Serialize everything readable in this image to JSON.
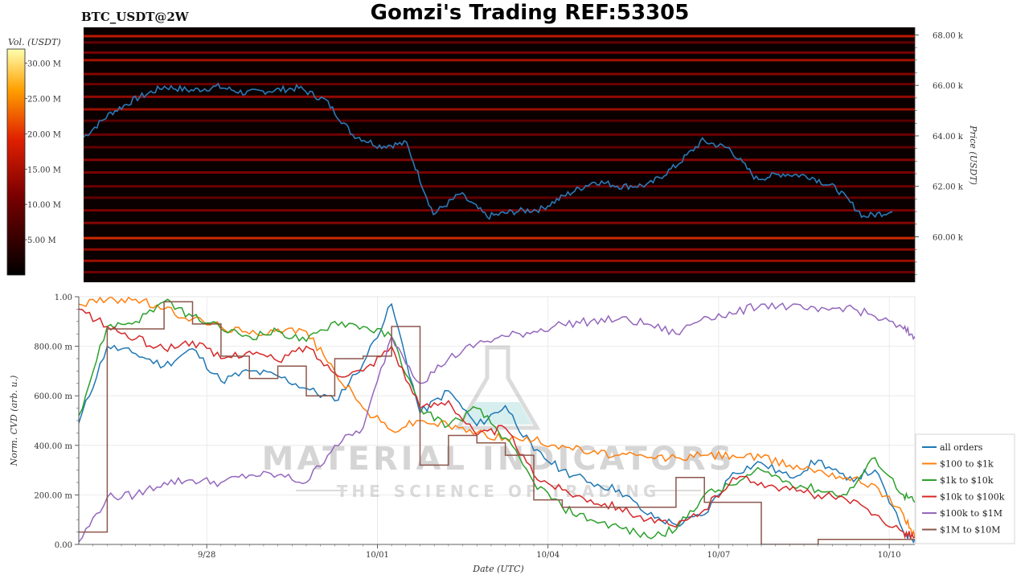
{
  "header": {
    "left_label": "BTC_USDT@2W",
    "title": "Gomzi's Trading REF:53305"
  },
  "watermark": {
    "brand": "MATERIAL INDICATORS",
    "tagline": "THE SCIENCE OF TRADING"
  },
  "colorbar": {
    "label": "Vol. (USDT)",
    "ticks": [
      "5.00 M",
      "10.00 M",
      "15.00 M",
      "20.00 M",
      "25.00 M",
      "30.00 M"
    ],
    "tick_values": [
      5,
      10,
      15,
      20,
      25,
      30
    ],
    "range": [
      0,
      32
    ]
  },
  "colors": {
    "all_orders": "#1f77b4",
    "usd100_1k": "#ff7f0e",
    "usd1k_10k": "#2ca02c",
    "usd10k_100k": "#d62728",
    "usd100k_1m": "#9467bd",
    "usd1m_10m": "#8c564b",
    "price_line": "#2a7ab8"
  },
  "chart_data": [
    {
      "type": "heatmap",
      "name": "order-book-heatmap",
      "ylabel": "Price (USDT)",
      "yticks": [
        "60.00 k",
        "62.00 k",
        "64.00 k",
        "66.00 k",
        "68.00 k"
      ],
      "ytick_values": [
        60000,
        62000,
        64000,
        66000,
        68000
      ],
      "ylim": [
        58200,
        68300
      ],
      "xlim": [
        "2024-09-25 18:00",
        "2024-10-10 12:00"
      ],
      "price_series": {
        "name": "price",
        "x": [
          "09/25 18:00",
          "09/26 06:00",
          "09/26 18:00",
          "09/27 06:00",
          "09/27 18:00",
          "09/28 06:00",
          "09/28 18:00",
          "09/29 06:00",
          "09/29 18:00",
          "09/30 06:00",
          "09/30 18:00",
          "10/01 06:00",
          "10/01 18:00",
          "10/02 06:00",
          "10/02 18:00",
          "10/03 06:00",
          "10/03 18:00",
          "10/04 06:00",
          "10/04 18:00",
          "10/05 06:00",
          "10/05 18:00",
          "10/06 06:00",
          "10/06 18:00",
          "10/07 06:00",
          "10/07 18:00",
          "10/08 06:00",
          "10/08 18:00",
          "10/09 06:00",
          "10/09 18:00",
          "10/10 06:00",
          "10/10 12:00"
        ],
        "values": [
          63950,
          64900,
          65500,
          65950,
          65800,
          65950,
          65700,
          65800,
          65900,
          65400,
          64050,
          63600,
          63700,
          60900,
          61700,
          60800,
          61000,
          61100,
          61700,
          62200,
          62000,
          62050,
          62800,
          63800,
          63500,
          62300,
          62500,
          62400,
          61900,
          60800,
          61000
        ]
      },
      "bands": [
        {
          "price": 67950,
          "volume": 18
        },
        {
          "price": 67700,
          "volume": 10
        },
        {
          "price": 67300,
          "volume": 12
        },
        {
          "price": 67000,
          "volume": 16
        },
        {
          "price": 66450,
          "volume": 13
        },
        {
          "price": 66050,
          "volume": 11
        },
        {
          "price": 65550,
          "volume": 14
        },
        {
          "price": 65050,
          "volume": 15
        },
        {
          "price": 64600,
          "volume": 9
        },
        {
          "price": 64050,
          "volume": 11
        },
        {
          "price": 63550,
          "volume": 10
        },
        {
          "price": 63050,
          "volume": 13
        },
        {
          "price": 62550,
          "volume": 12
        },
        {
          "price": 62000,
          "volume": 11
        },
        {
          "price": 61550,
          "volume": 10
        },
        {
          "price": 61050,
          "volume": 12
        },
        {
          "price": 60550,
          "volume": 13
        },
        {
          "price": 59950,
          "volume": 20
        },
        {
          "price": 59500,
          "volume": 14
        },
        {
          "price": 59050,
          "volume": 15
        },
        {
          "price": 58600,
          "volume": 11
        }
      ]
    },
    {
      "type": "line",
      "name": "normalized-cvd",
      "xlabel": "Date (UTC)",
      "ylabel": "Norm. CVD (arb. u.)",
      "ylim": [
        0,
        1
      ],
      "yticks": [
        "0.00",
        "200.00 m",
        "400.00 m",
        "600.00 m",
        "800.00 m",
        "1.00"
      ],
      "ytick_values": [
        0,
        0.2,
        0.4,
        0.6,
        0.8,
        1.0
      ],
      "xticks": [
        "9/28",
        "10/01",
        "10/04",
        "10/07",
        "10/10"
      ],
      "xtick_values": [
        2.25,
        5.25,
        8.25,
        11.25,
        14.25
      ],
      "xlim": [
        0,
        14.7
      ],
      "legend_position": "bottom-right",
      "x": [
        0.0,
        0.5,
        1.0,
        1.5,
        2.0,
        2.5,
        3.0,
        3.5,
        4.0,
        4.5,
        5.0,
        5.5,
        6.0,
        6.5,
        7.0,
        7.5,
        8.0,
        8.5,
        9.0,
        9.5,
        10.0,
        10.5,
        11.0,
        11.5,
        12.0,
        12.5,
        13.0,
        13.5,
        14.0,
        14.5,
        14.7
      ],
      "series": [
        {
          "name": "all orders",
          "color_key": "all_orders",
          "values": [
            0.49,
            0.8,
            0.77,
            0.72,
            0.79,
            0.66,
            0.7,
            0.68,
            0.63,
            0.58,
            0.73,
            0.97,
            0.53,
            0.62,
            0.48,
            0.56,
            0.38,
            0.3,
            0.25,
            0.22,
            0.12,
            0.08,
            0.12,
            0.29,
            0.33,
            0.27,
            0.34,
            0.26,
            0.3,
            0.05,
            0.02
          ]
        },
        {
          "name": "$100 to $1k",
          "color_key": "usd100_1k",
          "values": [
            0.97,
            0.99,
            0.99,
            0.95,
            0.91,
            0.88,
            0.85,
            0.87,
            0.86,
            0.7,
            0.55,
            0.46,
            0.5,
            0.48,
            0.45,
            0.43,
            0.42,
            0.4,
            0.37,
            0.36,
            0.35,
            0.35,
            0.36,
            0.36,
            0.35,
            0.32,
            0.3,
            0.27,
            0.24,
            0.12,
            0.03
          ]
        },
        {
          "name": "$1k to $10k",
          "color_key": "usd1k_10k",
          "values": [
            0.52,
            0.88,
            0.9,
            0.98,
            0.92,
            0.87,
            0.84,
            0.86,
            0.82,
            0.9,
            0.88,
            0.84,
            0.55,
            0.48,
            0.55,
            0.43,
            0.25,
            0.15,
            0.1,
            0.07,
            0.03,
            0.06,
            0.2,
            0.24,
            0.3,
            0.25,
            0.22,
            0.2,
            0.35,
            0.2,
            0.17
          ]
        },
        {
          "name": "$10k to $100k",
          "color_key": "usd10k_100k",
          "values": [
            0.95,
            0.88,
            0.83,
            0.79,
            0.82,
            0.75,
            0.78,
            0.74,
            0.8,
            0.69,
            0.7,
            0.8,
            0.55,
            0.58,
            0.44,
            0.47,
            0.28,
            0.22,
            0.18,
            0.15,
            0.1,
            0.07,
            0.14,
            0.27,
            0.25,
            0.22,
            0.2,
            0.18,
            0.12,
            0.05,
            0.03
          ]
        },
        {
          "name": "$100k to $1M",
          "color_key": "usd100k_1m",
          "values": [
            0.01,
            0.19,
            0.2,
            0.25,
            0.26,
            0.25,
            0.28,
            0.28,
            0.25,
            0.4,
            0.47,
            0.84,
            0.65,
            0.75,
            0.81,
            0.84,
            0.86,
            0.89,
            0.9,
            0.91,
            0.89,
            0.85,
            0.92,
            0.93,
            0.97,
            0.96,
            0.94,
            0.96,
            0.92,
            0.87,
            0.84
          ]
        },
        {
          "name": "$1M to $10M",
          "color_key": "usd1m_10m",
          "step": true,
          "values": [
            0.05,
            0.87,
            0.87,
            0.98,
            0.89,
            0.76,
            0.67,
            0.72,
            0.6,
            0.75,
            0.76,
            0.88,
            0.32,
            0.44,
            0.41,
            0.36,
            0.18,
            0.15,
            0.15,
            0.15,
            0.15,
            0.27,
            0.17,
            0.17,
            0.0,
            0.0,
            0.02,
            0.02,
            0.02,
            0.02,
            0.02
          ]
        }
      ]
    }
  ]
}
